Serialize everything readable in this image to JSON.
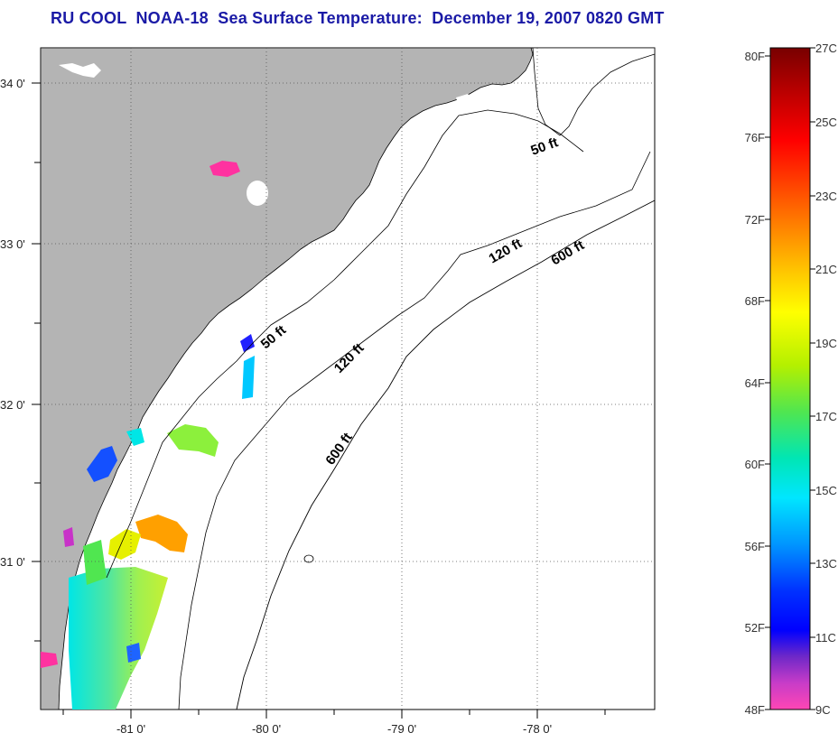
{
  "title": "RU COOL  NOAA-18  Sea Surface Temperature:  December 19, 2007 0820 GMT",
  "map": {
    "lat_labels": [
      "34 0'",
      "33 0'",
      "32 0'",
      "31 0'"
    ],
    "lon_labels": [
      "-81 0'",
      "-80 0'",
      "-79 0'",
      "-78 0'"
    ],
    "contour_labels": [
      "50 ft",
      "120 ft",
      "600 ft",
      "50 ft",
      "120 ft",
      "600 ft"
    ],
    "colors": {
      "land": "#b4b4b4",
      "ocean": "#ffffff",
      "coast": "#000000",
      "grid": "#555555"
    }
  },
  "colorbar": {
    "f_labels": [
      "80F",
      "76F",
      "72F",
      "68F",
      "64F",
      "60F",
      "56F",
      "52F",
      "48F"
    ],
    "c_labels": [
      "27C",
      "25C",
      "23C",
      "21C",
      "19C",
      "17C",
      "15C",
      "13C",
      "11C",
      "9C"
    ],
    "gradient_colors": [
      "#7a0000",
      "#d40000",
      "#ff2a00",
      "#ff7a00",
      "#ffc800",
      "#ffff00",
      "#b4f000",
      "#50e650",
      "#00e6b4",
      "#00e6ff",
      "#0096ff",
      "#0032ff",
      "#0000ff",
      "#6e28c8",
      "#c83cc8",
      "#ff50c8",
      "#ff46b4"
    ]
  }
}
